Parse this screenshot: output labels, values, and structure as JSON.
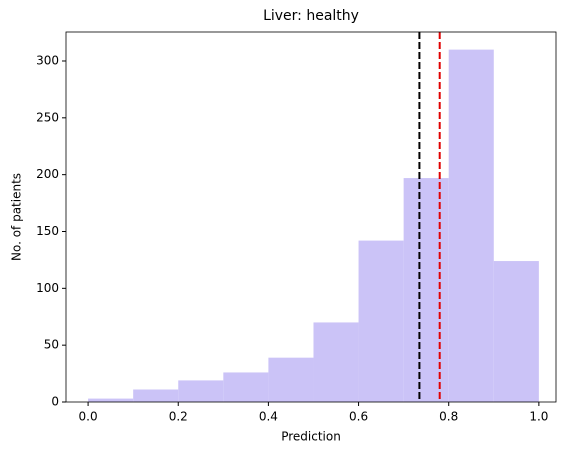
{
  "chart_data": {
    "type": "histogram",
    "title": "Liver: healthy",
    "xlabel": "Prediction",
    "ylabel": "No. of patients",
    "bins": [
      0,
      0.1,
      0.2,
      0.3,
      0.4,
      0.5,
      0.6,
      0.7,
      0.8,
      0.9,
      1.0
    ],
    "values": [
      3,
      11,
      19,
      26,
      39,
      70,
      142,
      197,
      310,
      124
    ],
    "color": "#cbc3f7",
    "vlines": [
      {
        "value": 0.735,
        "color": "#000000"
      },
      {
        "value": 0.78,
        "color": "#e00000"
      }
    ],
    "xlim": [
      -0.049,
      1.038
    ],
    "ylim": [
      0,
      325.5
    ],
    "xticks": [
      {
        "value": 0,
        "label": "0.0"
      },
      {
        "value": 0.2,
        "label": "0.2"
      },
      {
        "value": 0.4,
        "label": "0.4"
      },
      {
        "value": 0.6,
        "label": "0.6"
      },
      {
        "value": 0.8,
        "label": "0.8"
      },
      {
        "value": 1.0,
        "label": "1.0"
      }
    ],
    "yticks": [
      0,
      50,
      100,
      150,
      200,
      250,
      300
    ]
  }
}
